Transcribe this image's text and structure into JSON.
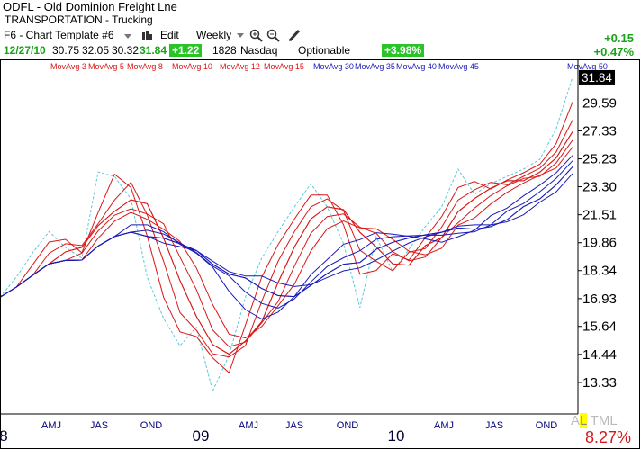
{
  "header": {
    "title": "ODFL - Old Dominion Freight Lne",
    "sector": "TRANSPORTATION - Trucking",
    "template": "F6 - Chart Template #6",
    "edit_label": "Edit",
    "period_label": "Weekly",
    "date": "12/27/10",
    "open": "30.75",
    "high": "32.05",
    "low": "30.32",
    "close": "31.84",
    "change": "+1.22",
    "volume": "1828",
    "exchange": "Nasdaq",
    "optionable": "Optionable",
    "pct_box": "+3.98%",
    "change_right": "+0.15",
    "pct_right": "+0.47%"
  },
  "icons": [
    "chevron-down-icon",
    "bar-chart-icon",
    "zoom-in-icon",
    "zoom-out-icon",
    "pencil-icon"
  ],
  "colors": {
    "red": "#d81818",
    "blue": "#1a1ab8",
    "price": "#5bc8d8",
    "green_box": "#28c428"
  },
  "footer": {
    "prefix": "A",
    "highlight": "L",
    "suffix": " TML",
    "pct": "8.27%"
  },
  "chart_data": {
    "type": "line",
    "title": "",
    "y_ticks": [
      "29.59",
      "27.33",
      "25.23",
      "23.30",
      "21.51",
      "19.86",
      "18.34",
      "16.93",
      "15.64",
      "14.44",
      "13.33"
    ],
    "y_scale": "log",
    "last_price": "31.84",
    "x_ticks": [
      "8",
      "AMJ",
      "JAS",
      "OND",
      "09",
      "AMJ",
      "JAS",
      "OND",
      "10",
      "AMJ",
      "JAS",
      "OND"
    ],
    "legend": [
      {
        "name": "MovAvg 3",
        "color": "red"
      },
      {
        "name": "MovAvg 5",
        "color": "red"
      },
      {
        "name": "MovAvg 8",
        "color": "red"
      },
      {
        "name": "MovAvg 10",
        "color": "red"
      },
      {
        "name": "MovAvg 12",
        "color": "red"
      },
      {
        "name": "MovAvg 15",
        "color": "red"
      },
      {
        "name": "MovAvg 30",
        "color": "blue"
      },
      {
        "name": "MovAvg 35",
        "color": "blue"
      },
      {
        "name": "MovAvg 40",
        "color": "blue"
      },
      {
        "name": "MovAvg 45",
        "color": "blue"
      },
      {
        "name": "MovAvg 50",
        "color": "blue"
      }
    ],
    "price_series": [
      {
        "x": "2008-01",
        "y": 17.0
      },
      {
        "x": "2008-02",
        "y": 18.0
      },
      {
        "x": "2008-03",
        "y": 19.3
      },
      {
        "x": "2008-04",
        "y": 20.5
      },
      {
        "x": "2008-05",
        "y": 19.6
      },
      {
        "x": "2008-06",
        "y": 19.0
      },
      {
        "x": "2008-07",
        "y": 24.3
      },
      {
        "x": "2008-08",
        "y": 24.0
      },
      {
        "x": "2008-09",
        "y": 22.5
      },
      {
        "x": "2008-10",
        "y": 18.0
      },
      {
        "x": "2008-11",
        "y": 16.0
      },
      {
        "x": "2008-12",
        "y": 14.8
      },
      {
        "x": "2009-01",
        "y": 15.6
      },
      {
        "x": "2009-02",
        "y": 13.0
      },
      {
        "x": "2009-03",
        "y": 14.4
      },
      {
        "x": "2009-04",
        "y": 17.0
      },
      {
        "x": "2009-05",
        "y": 19.0
      },
      {
        "x": "2009-06",
        "y": 20.5
      },
      {
        "x": "2009-07",
        "y": 22.0
      },
      {
        "x": "2009-08",
        "y": 23.5
      },
      {
        "x": "2009-09",
        "y": 22.0
      },
      {
        "x": "2009-10",
        "y": 19.8
      },
      {
        "x": "2009-11",
        "y": 16.5
      },
      {
        "x": "2009-12",
        "y": 20.2
      },
      {
        "x": "2010-01",
        "y": 18.3
      },
      {
        "x": "2010-02",
        "y": 19.5
      },
      {
        "x": "2010-03",
        "y": 20.8
      },
      {
        "x": "2010-04",
        "y": 22.0
      },
      {
        "x": "2010-05",
        "y": 24.5
      },
      {
        "x": "2010-06",
        "y": 22.8
      },
      {
        "x": "2010-07",
        "y": 23.5
      },
      {
        "x": "2010-08",
        "y": 24.0
      },
      {
        "x": "2010-09",
        "y": 24.5
      },
      {
        "x": "2010-10",
        "y": 25.2
      },
      {
        "x": "2010-11",
        "y": 27.5
      },
      {
        "x": "2010-12",
        "y": 31.84
      }
    ],
    "x_range": [
      "2008-01",
      "2010-12"
    ],
    "y_range": [
      12.5,
      32.0
    ]
  }
}
